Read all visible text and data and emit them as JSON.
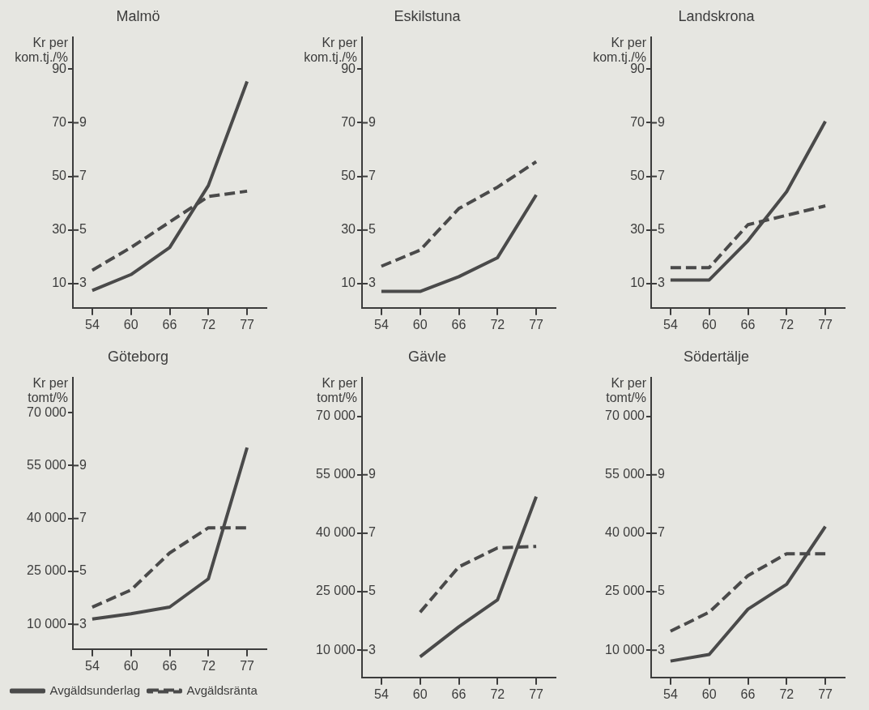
{
  "chart_data": [
    {
      "type": "line",
      "title": "Malmö",
      "ylabel": "Kr per kom.tj./%",
      "categories": [
        "54",
        "60",
        "66",
        "72",
        "77"
      ],
      "marker": "none",
      "ylim": [
        1,
        102
      ],
      "yticks": [
        10,
        30,
        50,
        70,
        90
      ],
      "y2lim": [
        2.1,
        12.2
      ],
      "y2ticks": [
        3,
        5,
        7,
        9
      ],
      "series": [
        {
          "color": "#4a4a4a",
          "line_style": "solid",
          "values": [
            7.5,
            13.4,
            23.5,
            46.6,
            85.4
          ]
        },
        {
          "color": "#4a4a4a",
          "line_style": "dashed",
          "axis": "y2",
          "values": [
            3.5,
            4.35,
            5.3,
            6.25,
            6.45
          ]
        }
      ]
    },
    {
      "type": "line",
      "title": "Eskilstuna",
      "ylabel": "Kr per kom.tj./%",
      "categories": [
        "54",
        "60",
        "66",
        "72",
        "77"
      ],
      "marker": "none",
      "ylim": [
        1,
        102
      ],
      "yticks": [
        10,
        30,
        50,
        70,
        90
      ],
      "y2lim": [
        2.1,
        12.2
      ],
      "y2ticks": [
        3,
        5,
        7,
        9
      ],
      "series": [
        {
          "color": "#4a4a4a",
          "line_style": "solid",
          "values": [
            7.1,
            7.1,
            12.6,
            19.7,
            43.1
          ]
        },
        {
          "color": "#4a4a4a",
          "line_style": "dashed",
          "axis": "y2",
          "values": [
            3.65,
            4.25,
            5.8,
            6.6,
            7.55
          ]
        }
      ]
    },
    {
      "type": "line",
      "title": "Landskrona",
      "ylabel": "Kr per kom.tj./%",
      "categories": [
        "54",
        "60",
        "66",
        "72",
        "77"
      ],
      "marker": "none",
      "ylim": [
        1,
        102
      ],
      "yticks": [
        10,
        30,
        50,
        70,
        90
      ],
      "y2lim": [
        2.1,
        12.2
      ],
      "y2ticks": [
        3,
        5,
        7,
        9
      ],
      "series": [
        {
          "color": "#4a4a4a",
          "line_style": "solid",
          "values": [
            11.4,
            11.4,
            26,
            44.3,
            70.5
          ]
        },
        {
          "color": "#4a4a4a",
          "line_style": "dashed",
          "axis": "y2",
          "values": [
            3.6,
            3.6,
            5.2,
            5.55,
            5.9
          ]
        }
      ]
    },
    {
      "type": "line",
      "title": "Göteborg",
      "ylabel": "Kr per tomt/%",
      "categories": [
        "54",
        "60",
        "66",
        "72",
        "77"
      ],
      "marker": "none",
      "legend": "bottom",
      "ylim": [
        3000,
        80000
      ],
      "yticks": [
        {
          "value": 10000,
          "label": "10 000"
        },
        {
          "value": 25000,
          "label": "25 000"
        },
        {
          "value": 40000,
          "label": "40 000"
        },
        {
          "value": 55000,
          "label": "55 000"
        },
        {
          "value": 70000,
          "label": "70 000"
        }
      ],
      "y2lim": [
        2.07,
        12.33
      ],
      "y2ticks": [
        3,
        5,
        7,
        9
      ],
      "series": [
        {
          "name": "Avgäldsunderlag",
          "color": "#4a4a4a",
          "line_style": "solid",
          "values": [
            11500,
            13000,
            14900,
            22900,
            60100
          ]
        },
        {
          "name": "Avgäldsränta",
          "color": "#4a4a4a",
          "line_style": "dashed",
          "axis": "y2",
          "values": [
            3.65,
            4.3,
            5.7,
            6.65,
            6.65
          ]
        }
      ]
    },
    {
      "type": "line",
      "title": "Gävle",
      "ylabel": "Kr per tomt/%",
      "categories": [
        "54",
        "60",
        "66",
        "72",
        "77"
      ],
      "marker": "none",
      "ylim": [
        3000,
        80000
      ],
      "yticks": [
        {
          "value": 10000,
          "label": "10 000"
        },
        {
          "value": 25000,
          "label": "25 000"
        },
        {
          "value": 40000,
          "label": "40 000"
        },
        {
          "value": 55000,
          "label": "55 000"
        },
        {
          "value": 70000,
          "label": "70 000"
        }
      ],
      "y2lim": [
        2.07,
        12.33
      ],
      "y2ticks": [
        3,
        5,
        7,
        9
      ],
      "series": [
        {
          "color": "#4a4a4a",
          "line_style": "solid",
          "values": [
            null,
            8300,
            16000,
            22900,
            49400
          ]
        },
        {
          "color": "#4a4a4a",
          "line_style": "dashed",
          "axis": "y2",
          "values": [
            null,
            4.3,
            5.85,
            6.5,
            6.55
          ]
        }
      ]
    },
    {
      "type": "line",
      "title": "Södertälje",
      "ylabel": "Kr per tomt/%",
      "categories": [
        "54",
        "60",
        "66",
        "72",
        "77"
      ],
      "marker": "none",
      "ylim": [
        3000,
        80000
      ],
      "yticks": [
        {
          "value": 10000,
          "label": "10 000"
        },
        {
          "value": 25000,
          "label": "25 000"
        },
        {
          "value": 40000,
          "label": "40 000"
        },
        {
          "value": 55000,
          "label": "55 000"
        },
        {
          "value": 70000,
          "label": "70 000"
        }
      ],
      "y2lim": [
        2.07,
        12.33
      ],
      "y2ticks": [
        3,
        5,
        7,
        9
      ],
      "series": [
        {
          "color": "#4a4a4a",
          "line_style": "solid",
          "values": [
            7200,
            8900,
            20500,
            26900,
            41700
          ]
        },
        {
          "color": "#4a4a4a",
          "line_style": "dashed",
          "axis": "y2",
          "values": [
            3.65,
            4.3,
            5.55,
            6.3,
            6.3
          ]
        }
      ]
    }
  ]
}
